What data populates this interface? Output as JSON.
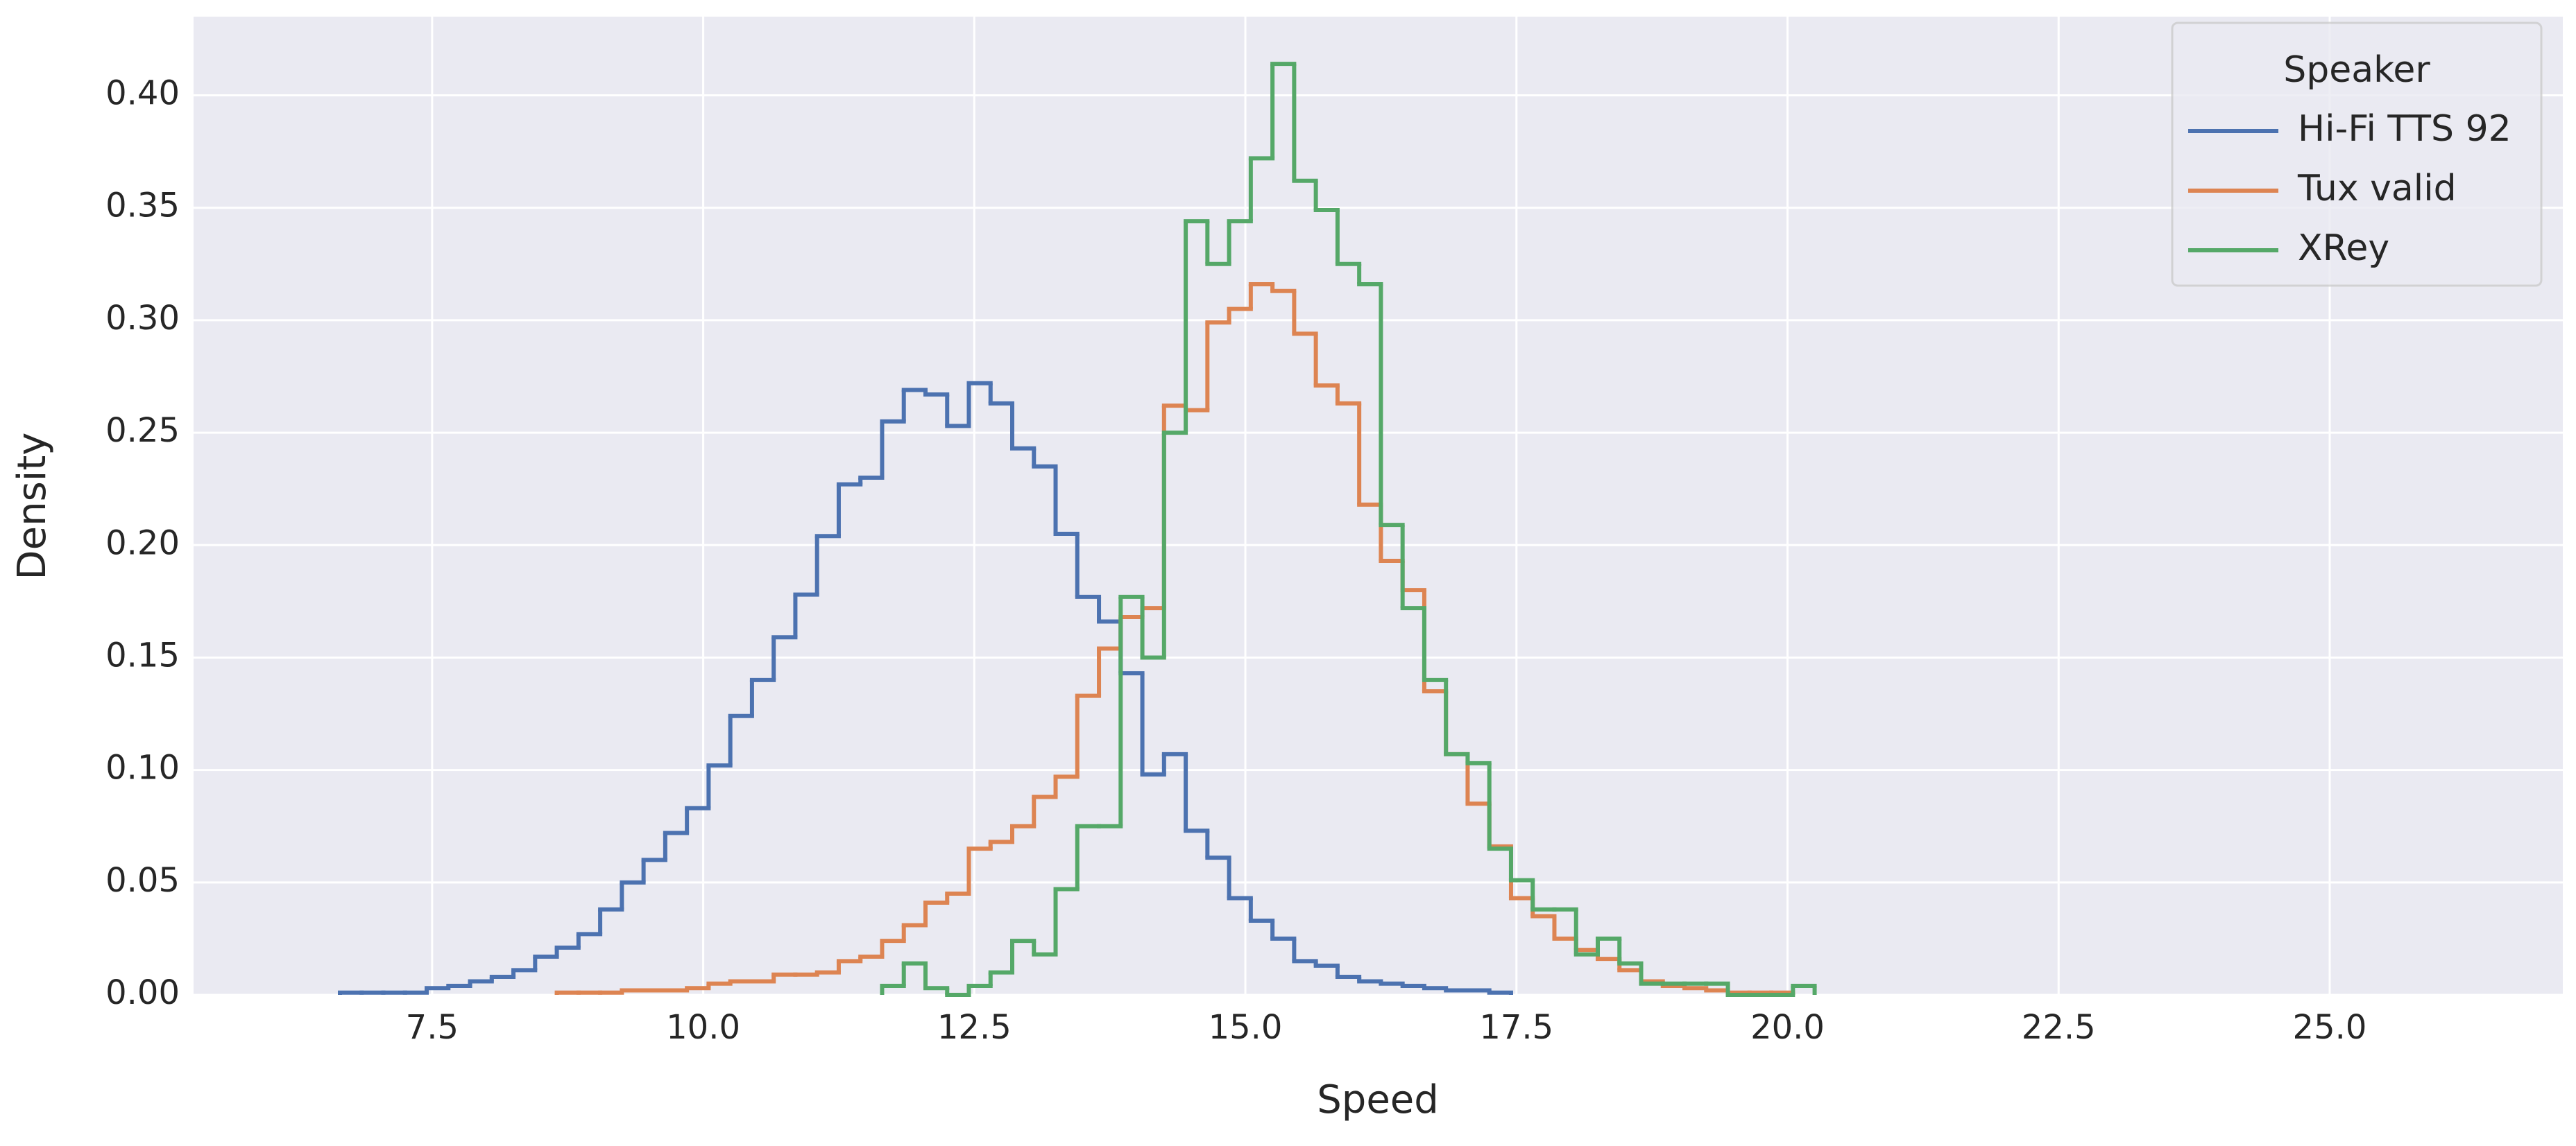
{
  "chart_data": {
    "type": "histogram",
    "element": "step",
    "x_label": "Speed",
    "y_label": "Density",
    "xlim": [
      5.3,
      27.15
    ],
    "ylim": [
      0,
      0.435
    ],
    "xticks": [
      7.5,
      {
        "value": 10,
        "label": "10.0"
      },
      12.5,
      {
        "value": 15,
        "label": "15.0"
      },
      17.5,
      {
        "value": 20,
        "label": "20.0"
      },
      22.5,
      {
        "value": 25,
        "label": "25.0"
      }
    ],
    "yticks": [
      {
        "value": 0,
        "label": "0.00"
      },
      0.05,
      {
        "value": 0.1,
        "label": "0.10"
      },
      0.15,
      {
        "value": 0.2,
        "label": "0.20"
      },
      0.25,
      {
        "value": 0.3,
        "label": "0.30"
      },
      0.35,
      {
        "value": 0.4,
        "label": "0.40"
      }
    ],
    "grid": true,
    "legend_title": "Speaker",
    "legend_position": "upper right",
    "series": [
      {
        "name": "Hi-Fi TTS 92",
        "color": "#4c72b0",
        "bins": [
          6.65,
          6.85,
          7.05,
          7.25,
          7.45,
          7.65,
          7.85,
          8.05,
          8.25,
          8.45,
          8.65,
          8.85,
          9.05,
          9.25,
          9.45,
          9.65,
          9.85,
          10.05,
          10.25,
          10.45,
          10.65,
          10.85,
          11.05,
          11.25,
          11.45,
          11.65,
          11.85,
          12.05,
          12.25,
          12.45,
          12.65,
          12.85,
          13.05,
          13.25,
          13.45,
          13.65,
          13.85,
          14.05,
          14.25,
          14.45,
          14.65,
          14.85,
          15.05,
          15.25,
          15.45,
          15.65,
          15.85,
          16.05,
          16.25,
          16.45,
          16.65,
          16.85,
          17.05,
          17.25,
          17.45
        ],
        "values": [
          0.001,
          0.001,
          0.001,
          0.001,
          0.003,
          0.004,
          0.006,
          0.008,
          0.011,
          0.017,
          0.021,
          0.027,
          0.038,
          0.05,
          0.06,
          0.072,
          0.083,
          0.102,
          0.124,
          0.14,
          0.159,
          0.178,
          0.204,
          0.227,
          0.23,
          0.255,
          0.269,
          0.267,
          0.253,
          0.272,
          0.263,
          0.243,
          0.235,
          0.205,
          0.177,
          0.166,
          0.143,
          0.098,
          0.107,
          0.073,
          0.061,
          0.043,
          0.033,
          0.025,
          0.015,
          0.013,
          0.008,
          0.006,
          0.005,
          0.004,
          0.003,
          0.002,
          0.002,
          0.001
        ]
      },
      {
        "name": "Tux valid",
        "color": "#dd8452",
        "bins": [
          8.65,
          8.85,
          9.05,
          9.25,
          9.45,
          9.65,
          9.85,
          10.05,
          10.25,
          10.45,
          10.65,
          10.85,
          11.05,
          11.25,
          11.45,
          11.65,
          11.85,
          12.05,
          12.25,
          12.45,
          12.65,
          12.85,
          13.05,
          13.25,
          13.45,
          13.65,
          13.85,
          14.05,
          14.25,
          14.45,
          14.65,
          14.85,
          15.05,
          15.25,
          15.45,
          15.65,
          15.85,
          16.05,
          16.25,
          16.45,
          16.65,
          16.85,
          17.05,
          17.25,
          17.45,
          17.65,
          17.85,
          18.05,
          18.25,
          18.45,
          18.65,
          18.85,
          19.05,
          19.25,
          19.45,
          19.65,
          19.85,
          20.05
        ],
        "values": [
          0.001,
          0.001,
          0.001,
          0.002,
          0.002,
          0.002,
          0.003,
          0.005,
          0.006,
          0.006,
          0.009,
          0.009,
          0.01,
          0.015,
          0.017,
          0.024,
          0.031,
          0.041,
          0.045,
          0.065,
          0.068,
          0.075,
          0.088,
          0.097,
          0.133,
          0.154,
          0.168,
          0.172,
          0.262,
          0.26,
          0.299,
          0.305,
          0.316,
          0.313,
          0.294,
          0.271,
          0.263,
          0.218,
          0.193,
          0.18,
          0.135,
          0.107,
          0.085,
          0.066,
          0.043,
          0.035,
          0.025,
          0.02,
          0.016,
          0.011,
          0.006,
          0.004,
          0.003,
          0.002,
          0.001,
          0.001,
          0.001
        ]
      },
      {
        "name": "XRey",
        "color": "#55a868",
        "bins": [
          11.65,
          11.85,
          12.05,
          12.25,
          12.45,
          12.65,
          12.85,
          13.05,
          13.25,
          13.45,
          13.65,
          13.85,
          14.05,
          14.25,
          14.45,
          14.65,
          14.85,
          15.05,
          15.25,
          15.45,
          15.65,
          15.85,
          16.05,
          16.25,
          16.45,
          16.65,
          16.85,
          17.05,
          17.25,
          17.45,
          17.65,
          17.85,
          18.05,
          18.25,
          18.45,
          18.65,
          18.85,
          19.05,
          19.25,
          19.45,
          19.65,
          19.85,
          20.05,
          20.25
        ],
        "values": [
          0.004,
          0.014,
          0.003,
          0,
          0.004,
          0.01,
          0.024,
          0.018,
          0.047,
          0.075,
          0.075,
          0.177,
          0.15,
          0.25,
          0.344,
          0.325,
          0.344,
          0.372,
          0.414,
          0.362,
          0.349,
          0.325,
          0.316,
          0.209,
          0.172,
          0.14,
          0.107,
          0.103,
          0.065,
          0.051,
          0.038,
          0.038,
          0.018,
          0.025,
          0.014,
          0.005,
          0.005,
          0.005,
          0.005,
          0,
          0,
          0,
          0.004
        ]
      }
    ]
  }
}
